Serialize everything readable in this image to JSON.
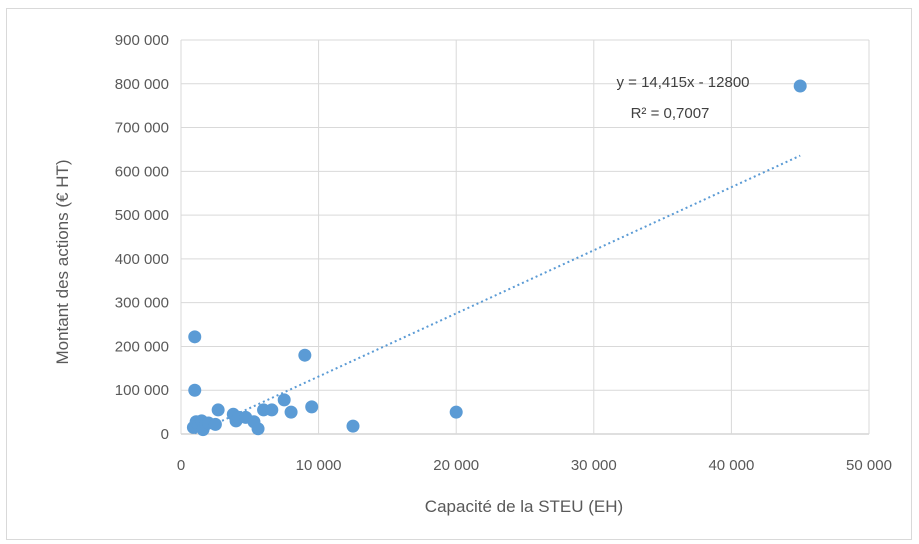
{
  "chart_data": {
    "type": "scatter",
    "title": "",
    "xlabel": "Capacité de la STEU  (EH)",
    "ylabel": "Montant  des actions (€ HT)",
    "xlim": [
      0,
      50000
    ],
    "ylim": [
      0,
      900000
    ],
    "x_ticks": [
      0,
      10000,
      20000,
      30000,
      40000,
      50000
    ],
    "x_tick_labels": [
      "0",
      "10 000",
      "20 000",
      "30 000",
      "40 000",
      "50 000"
    ],
    "y_ticks": [
      0,
      100000,
      200000,
      300000,
      400000,
      500000,
      600000,
      700000,
      800000,
      900000
    ],
    "y_tick_labels": [
      "0",
      "100 000",
      "200 000",
      "300 000",
      "400 000",
      "500 000",
      "600 000",
      "700 000",
      "800 000",
      "900 000"
    ],
    "grid": true,
    "legend": "none",
    "marker_color": "#5b9bd5",
    "trendline": {
      "type": "linear",
      "slope": 14.415,
      "intercept": -12800,
      "x_range": [
        1000,
        45000
      ],
      "equation_label": "y = 14,415x - 12800",
      "r2_label": "R² = 0,7007",
      "color": "#5b9bd5",
      "style": "dotted"
    },
    "points": [
      {
        "x": 1000,
        "y": 222000
      },
      {
        "x": 1000,
        "y": 100000
      },
      {
        "x": 900,
        "y": 15000
      },
      {
        "x": 1100,
        "y": 28000
      },
      {
        "x": 1300,
        "y": 20000
      },
      {
        "x": 1500,
        "y": 30000
      },
      {
        "x": 1600,
        "y": 10000
      },
      {
        "x": 1800,
        "y": 22000
      },
      {
        "x": 2000,
        "y": 25000
      },
      {
        "x": 2500,
        "y": 22000
      },
      {
        "x": 2700,
        "y": 55000
      },
      {
        "x": 3800,
        "y": 45000
      },
      {
        "x": 4000,
        "y": 30000
      },
      {
        "x": 4200,
        "y": 38000
      },
      {
        "x": 4700,
        "y": 38000
      },
      {
        "x": 5300,
        "y": 28000
      },
      {
        "x": 5600,
        "y": 12000
      },
      {
        "x": 6000,
        "y": 55000
      },
      {
        "x": 6600,
        "y": 55000
      },
      {
        "x": 7500,
        "y": 78000
      },
      {
        "x": 8000,
        "y": 50000
      },
      {
        "x": 9000,
        "y": 180000
      },
      {
        "x": 9500,
        "y": 62000
      },
      {
        "x": 12500,
        "y": 18000
      },
      {
        "x": 20000,
        "y": 50000
      },
      {
        "x": 45000,
        "y": 795000
      }
    ]
  }
}
